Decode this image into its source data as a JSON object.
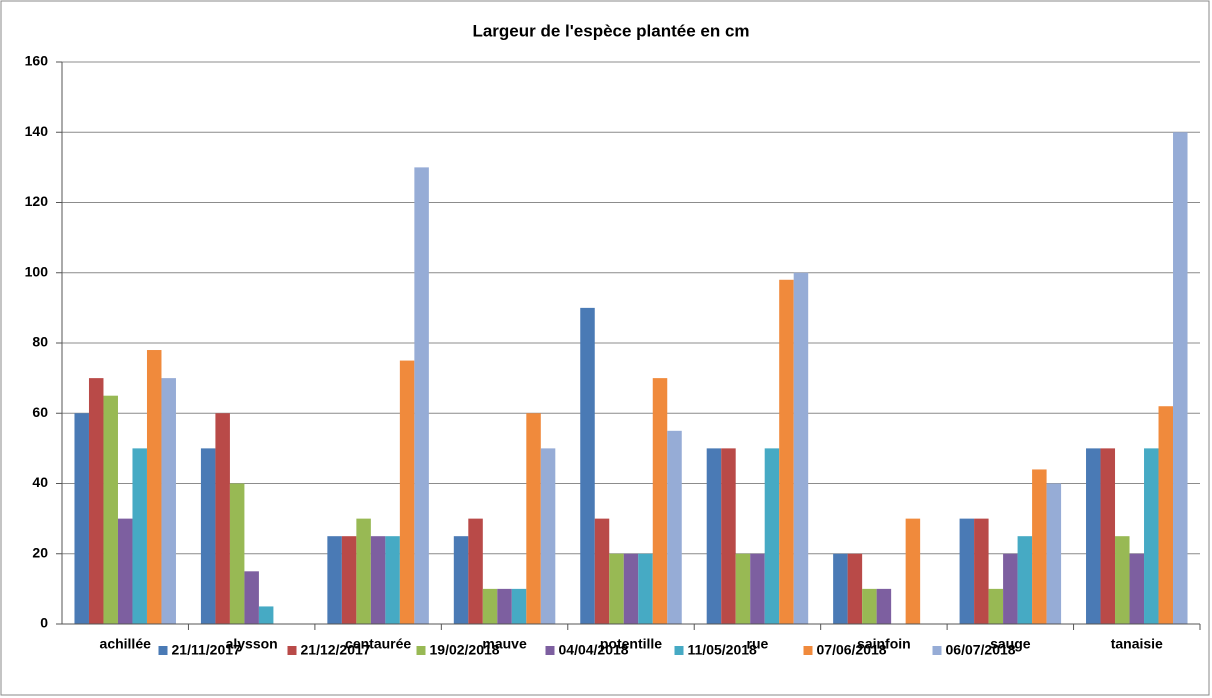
{
  "chart_data": {
    "type": "bar",
    "title": "Largeur de l'espèce plantée en cm",
    "categories": [
      "achillée",
      "alysson",
      "centaurée",
      "mauve",
      "potentille",
      "rue",
      "sainfoin",
      "sauge",
      "tanaisie"
    ],
    "series": [
      {
        "name": "21/11/2017",
        "color": "#4a7ab5",
        "values": [
          60,
          50,
          25,
          25,
          90,
          50,
          20,
          30,
          50
        ]
      },
      {
        "name": "21/12/2017",
        "color": "#b94a48",
        "values": [
          70,
          60,
          25,
          30,
          30,
          50,
          20,
          30,
          50
        ]
      },
      {
        "name": "19/02/2018",
        "color": "#98b954",
        "values": [
          65,
          40,
          30,
          10,
          20,
          20,
          10,
          10,
          25
        ]
      },
      {
        "name": "04/04/2018",
        "color": "#7d5fa0",
        "values": [
          30,
          15,
          25,
          10,
          20,
          20,
          10,
          20,
          20
        ]
      },
      {
        "name": "11/05/2018",
        "color": "#46aac4",
        "values": [
          50,
          5,
          25,
          10,
          20,
          50,
          null,
          25,
          50
        ]
      },
      {
        "name": "07/06/2018",
        "color": "#f08a3c",
        "values": [
          78,
          null,
          75,
          60,
          70,
          98,
          30,
          44,
          62
        ]
      },
      {
        "name": "06/07/2018",
        "color": "#96acd6",
        "values": [
          70,
          null,
          130,
          50,
          55,
          100,
          null,
          40,
          140
        ]
      }
    ],
    "ylim": [
      0,
      160
    ],
    "yticks": [
      0,
      20,
      40,
      60,
      80,
      100,
      120,
      140,
      160
    ],
    "grid": true,
    "legend": "bottom"
  }
}
